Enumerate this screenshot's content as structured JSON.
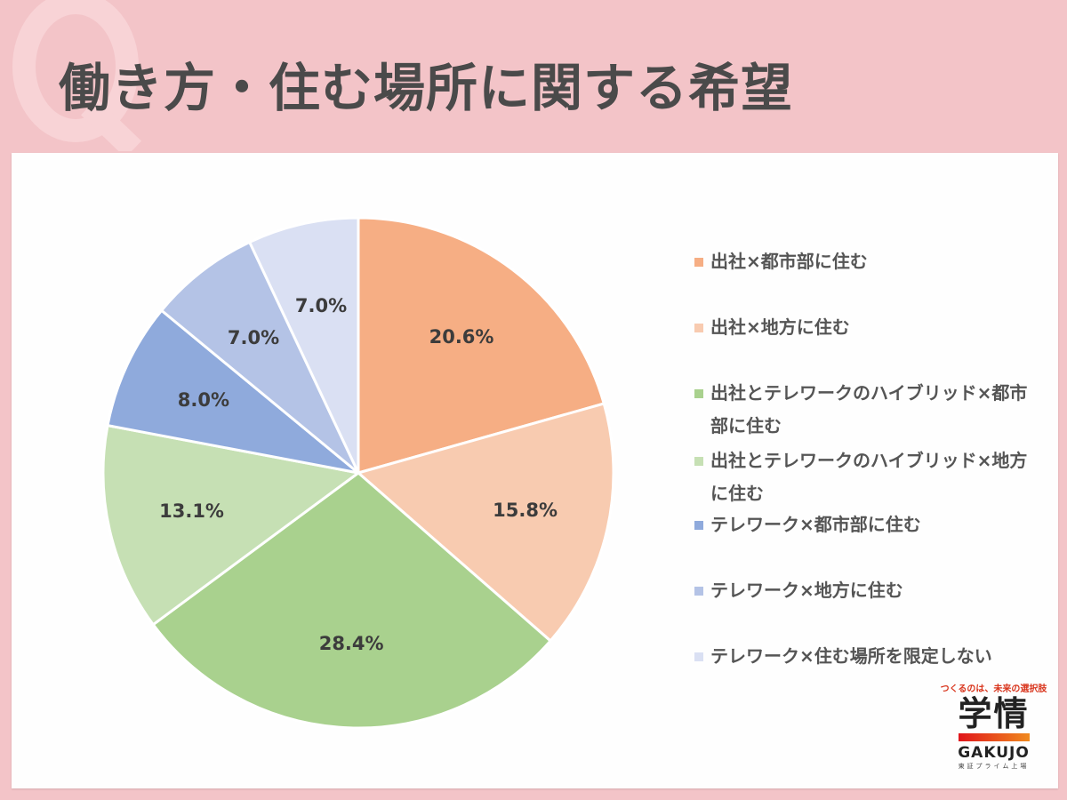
{
  "header": {
    "title": "働き方・住む場所に関する希望",
    "decoration": "Q"
  },
  "chart_data": {
    "type": "pie",
    "title": "働き方・住む場所に関する希望",
    "categories": [
      "出社×都市部に住む",
      "出社×地方に住む",
      "出社とテレワークのハイブリッド×都市部に住む",
      "出社とテレワークのハイブリッド×地方に住む",
      "テレワーク×都市部に住む",
      "テレワーク×地方に住む",
      "テレワーク×住む場所を限定しない"
    ],
    "values": [
      20.6,
      15.8,
      28.4,
      13.1,
      8.0,
      7.0,
      7.0
    ],
    "labels": [
      "20.6%",
      "15.8%",
      "28.4%",
      "13.1%",
      "8.0%",
      "7.0%",
      "7.0%"
    ],
    "colors": [
      "#f6ae84",
      "#f8cbb0",
      "#a9d18e",
      "#c6e0b4",
      "#8faadc",
      "#b4c3e6",
      "#dae0f3"
    ],
    "legend_position": "right",
    "unit": "%"
  },
  "legend": {
    "items": [
      {
        "label": "出社×都市部に住む",
        "color": "#f6ae84"
      },
      {
        "label": "出社×地方に住む",
        "color": "#f8cbb0"
      },
      {
        "label": "出社とテレワークのハイブリッド×都市部に住む",
        "color": "#a9d18e"
      },
      {
        "label": "出社とテレワークのハイブリッド×地方に住む",
        "color": "#c6e0b4"
      },
      {
        "label": "テレワーク×都市部に住む",
        "color": "#8faadc"
      },
      {
        "label": "テレワーク×地方に住む",
        "color": "#b4c3e6"
      },
      {
        "label": "テレワーク×住む場所を限定しない",
        "color": "#dae0f3"
      }
    ]
  },
  "logo": {
    "tagline": "つくるのは、未来の選択肢",
    "kanji": "学情",
    "english": "GAKUJO",
    "sub": "東証プライム上場"
  }
}
